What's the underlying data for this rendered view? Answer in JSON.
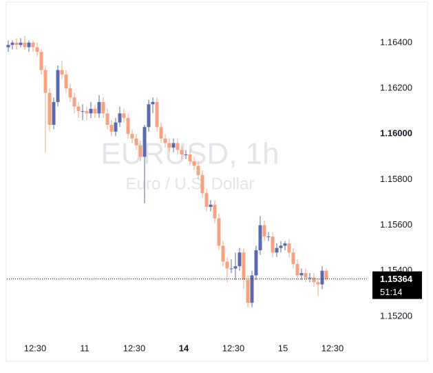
{
  "chart_data": {
    "type": "candlestick",
    "watermark_title": "EURUSD, 1h",
    "watermark_subtitle": "Euro / U.S. Dollar",
    "up_color": "#5b6aae",
    "down_color": "#f4a27f",
    "open": [
      1.1638,
      1.1639,
      1.164,
      1.1639,
      1.164,
      1.1638,
      1.164,
      1.1638,
      1.1636,
      1.1628,
      1.1618,
      1.1604,
      1.1614,
      1.1628,
      1.1626,
      1.162,
      1.1616,
      1.1612,
      1.161,
      1.161,
      1.1609,
      1.1611,
      1.1609,
      1.1614,
      1.1609,
      1.1604,
      1.1601,
      1.1605,
      1.1609,
      1.1607,
      1.16,
      1.1598,
      1.1595,
      1.159,
      1.1603,
      1.1613,
      1.1614,
      1.1603,
      1.1598,
      1.1596,
      1.1594,
      1.1596,
      1.1593,
      1.1591,
      1.1591,
      1.1588,
      1.1586,
      1.1582,
      1.1574,
      1.1568,
      1.1569,
      1.1563,
      1.1551,
      1.1544,
      1.1541,
      1.1541,
      1.1542,
      1.1548,
      1.1536,
      1.1526,
      1.1538,
      1.1549,
      1.156,
      1.1555,
      1.1555,
      1.1548,
      1.155,
      1.1551,
      1.1552,
      1.1548,
      1.1543,
      1.1538,
      1.1539,
      1.1537,
      1.1537,
      1.1535,
      1.1534,
      1.154
    ],
    "high": [
      1.1641,
      1.1641,
      1.1642,
      1.1642,
      1.1643,
      1.1641,
      1.1641,
      1.164,
      1.1637,
      1.163,
      1.162,
      1.1616,
      1.163,
      1.1632,
      1.1628,
      1.1622,
      1.1618,
      1.1614,
      1.1613,
      1.1612,
      1.1614,
      1.1613,
      1.1617,
      1.1616,
      1.1611,
      1.1606,
      1.1607,
      1.1612,
      1.1611,
      1.1609,
      1.1602,
      1.16,
      1.1597,
      1.1604,
      1.1615,
      1.1616,
      1.1616,
      1.1605,
      1.16,
      1.1598,
      1.1598,
      1.1598,
      1.1595,
      1.1593,
      1.1593,
      1.159,
      1.1588,
      1.1584,
      1.1576,
      1.1571,
      1.1571,
      1.1565,
      1.1553,
      1.1546,
      1.1545,
      1.1548,
      1.155,
      1.155,
      1.1538,
      1.154,
      1.1551,
      1.1564,
      1.1562,
      1.1557,
      1.1557,
      1.1552,
      1.1553,
      1.1553,
      1.1554,
      1.155,
      1.1545,
      1.1541,
      1.1541,
      1.1539,
      1.1539,
      1.1536,
      1.1542,
      1.1541
    ],
    "low": [
      1.1636,
      1.1637,
      1.1637,
      1.1638,
      1.1637,
      1.1636,
      1.1636,
      1.1634,
      1.1626,
      1.1592,
      1.1601,
      1.1602,
      1.1612,
      1.1624,
      1.1618,
      1.1614,
      1.1609,
      1.1607,
      1.1606,
      1.1606,
      1.1607,
      1.1607,
      1.1607,
      1.1607,
      1.1602,
      1.1599,
      1.1599,
      1.1603,
      1.1605,
      1.1598,
      1.1596,
      1.1593,
      1.1588,
      1.15696,
      1.1601,
      1.1609,
      1.1601,
      1.1596,
      1.1594,
      1.1592,
      1.1592,
      1.1591,
      1.1589,
      1.1589,
      1.1586,
      1.1584,
      1.158,
      1.1572,
      1.1566,
      1.1566,
      1.1561,
      1.1549,
      1.1542,
      1.1535,
      1.1539,
      1.1536,
      1.154,
      1.1532,
      1.1524,
      1.1524,
      1.1536,
      1.1547,
      1.1553,
      1.1553,
      1.1546,
      1.1546,
      1.1548,
      1.1549,
      1.1546,
      1.1541,
      1.1536,
      1.1536,
      1.1535,
      1.1535,
      1.1533,
      1.1529,
      1.1532,
      1.15355
    ],
    "close": [
      1.1639,
      1.164,
      1.1639,
      1.164,
      1.1638,
      1.164,
      1.1638,
      1.1636,
      1.1628,
      1.1618,
      1.1604,
      1.1614,
      1.1628,
      1.1626,
      1.162,
      1.1616,
      1.1612,
      1.161,
      1.161,
      1.1609,
      1.1611,
      1.1609,
      1.1614,
      1.1609,
      1.1604,
      1.1601,
      1.1605,
      1.1609,
      1.1607,
      1.16,
      1.1598,
      1.1595,
      1.159,
      1.1603,
      1.1613,
      1.1614,
      1.1603,
      1.1598,
      1.1596,
      1.1594,
      1.1596,
      1.1593,
      1.1591,
      1.1591,
      1.1588,
      1.1586,
      1.1582,
      1.1574,
      1.1568,
      1.1569,
      1.1563,
      1.1551,
      1.1544,
      1.1541,
      1.1541,
      1.1542,
      1.1548,
      1.1536,
      1.1526,
      1.1538,
      1.1549,
      1.156,
      1.1555,
      1.1555,
      1.1548,
      1.155,
      1.1551,
      1.1552,
      1.1548,
      1.1543,
      1.1538,
      1.1539,
      1.1537,
      1.1537,
      1.1535,
      1.1534,
      1.154,
      1.15364
    ],
    "countdown": "51:14",
    "ylim": [
      1.15106,
      1.16572
    ],
    "yticks": [
      {
        "value": 1.152,
        "label": "1.15200"
      },
      {
        "value": 1.154,
        "label": "1.15400"
      },
      {
        "value": 1.156,
        "label": "1.15600"
      },
      {
        "value": 1.158,
        "label": "1.15800"
      },
      {
        "value": 1.16,
        "label": "1.16000",
        "bold": true
      },
      {
        "value": 1.162,
        "label": "1.16200"
      },
      {
        "value": 1.164,
        "label": "1.16400"
      }
    ],
    "xticks": [
      {
        "value": 6.5,
        "label": "12:30"
      },
      {
        "value": 18.5,
        "label": "11"
      },
      {
        "value": 30.5,
        "label": "12:30"
      },
      {
        "value": 42.5,
        "label": "14",
        "bold": true
      },
      {
        "value": 54.5,
        "label": "12:30"
      },
      {
        "value": 66.5,
        "label": "15"
      },
      {
        "value": 78.5,
        "label": "12:30"
      }
    ]
  }
}
